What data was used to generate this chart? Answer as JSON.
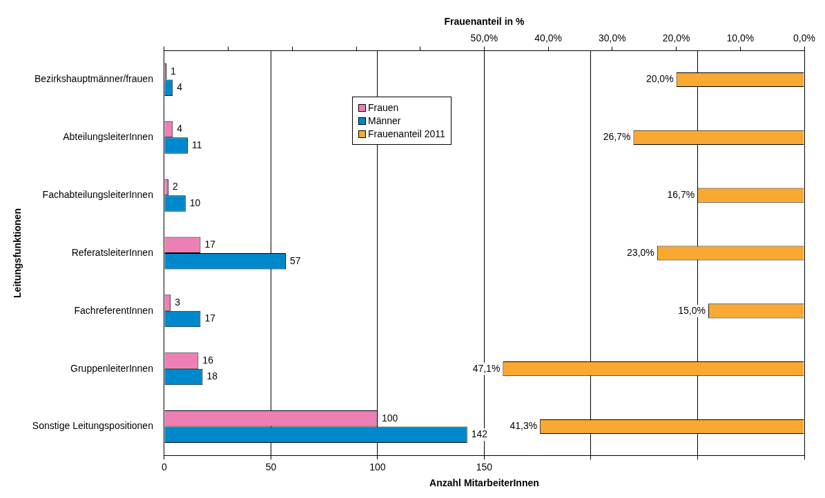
{
  "chart_data": {
    "type": "bar",
    "orientation": "horizontal",
    "categories": [
      "Bezirkshauptmänner/frauen",
      "AbteilungsleiterInnen",
      "FachabteilungsleiterInnen",
      "ReferatsleiterInnen",
      "FachreferentInnen",
      "GruppenleiterInnen",
      "Sonstige Leitungspositionen"
    ],
    "series": [
      {
        "name": "Frauen",
        "color": "#ee7fb4",
        "values": [
          1,
          4,
          2,
          17,
          3,
          16,
          100
        ]
      },
      {
        "name": "Männer",
        "color": "#0088cc",
        "values": [
          4,
          11,
          10,
          57,
          17,
          18,
          142
        ]
      },
      {
        "name": "Frauenanteil 2011",
        "color": "#f9a832",
        "axis": "x2",
        "values": [
          20.0,
          26.7,
          16.7,
          23.0,
          15.0,
          47.1,
          41.3
        ],
        "value_labels": [
          "20,0%",
          "26,7%",
          "16,7%",
          "23,0%",
          "15,0%",
          "47,1%",
          "41,3%"
        ]
      }
    ],
    "xlabel": "Anzahl MitarbeiterInnen",
    "x2label": "Frauenanteil in %",
    "ylabel": "Leitungsfunktionen",
    "xlim": [
      0,
      300
    ],
    "xticks": [
      0,
      50,
      100,
      150,
      {
        "value": 200,
        "label": null
      },
      {
        "value": 250,
        "label": null
      },
      {
        "value": 300,
        "label": null
      }
    ],
    "x2lim": [
      100,
      0
    ],
    "x2ticks": [
      {
        "value": 100,
        "label": null
      },
      {
        "value": 90,
        "label": null
      },
      {
        "value": 80,
        "label": null
      },
      {
        "value": 70,
        "label": null
      },
      {
        "value": 60,
        "label": null
      },
      {
        "value": 50,
        "label": "50,0%"
      },
      {
        "value": 40,
        "label": "40,0%"
      },
      {
        "value": 30,
        "label": "30,0%"
      },
      {
        "value": 20,
        "label": "20,0%"
      },
      {
        "value": 10,
        "label": "10,0%"
      },
      {
        "value": 0,
        "label": "0,0%"
      }
    ],
    "data_labels": true,
    "grid": "x",
    "legend": "top"
  }
}
